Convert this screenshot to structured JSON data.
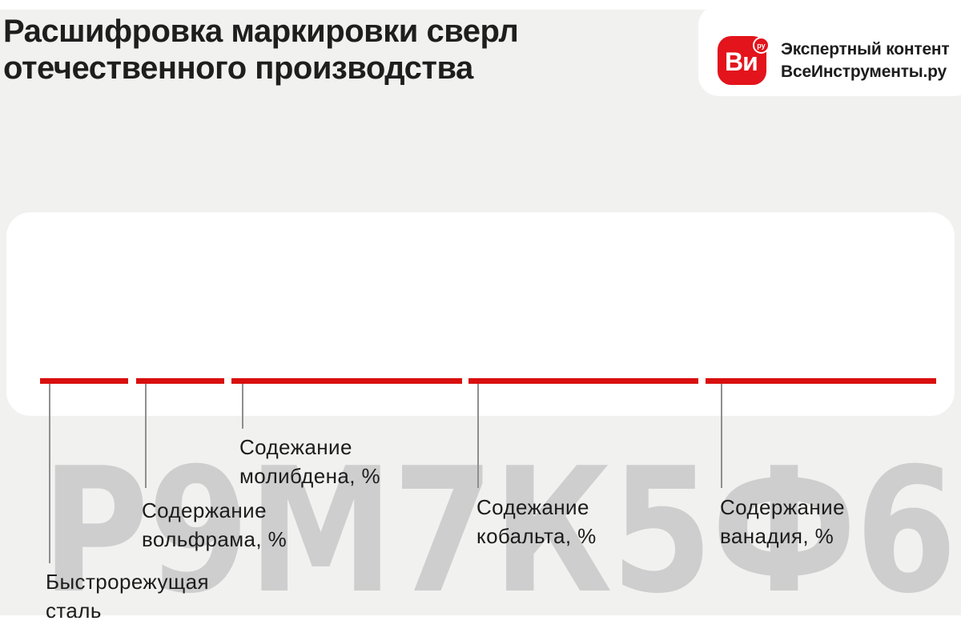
{
  "colors": {
    "accent_red": "#d8100e",
    "brand_red": "#e3141c",
    "panel_bg": "#f1f1f0",
    "code_gray": "#cecece"
  },
  "header": {
    "title": "Расшифровка маркировки сверл\nотечественного производства"
  },
  "brand": {
    "icon_text": "Ви",
    "icon_badge": "ру",
    "caption": "Экспертный контент\nВсеИнструменты.ру"
  },
  "marking": {
    "code": "Р9М7К5Ф6"
  },
  "legend": [
    {
      "label": "Быстрорежущая\nсталь"
    },
    {
      "label": "Содержание\nвольфрама, %"
    },
    {
      "label": "Содежание\nмолибдена, %"
    },
    {
      "label": "Содежание\nкобальта, %"
    },
    {
      "label": "Содержание\nванадия, %"
    }
  ]
}
